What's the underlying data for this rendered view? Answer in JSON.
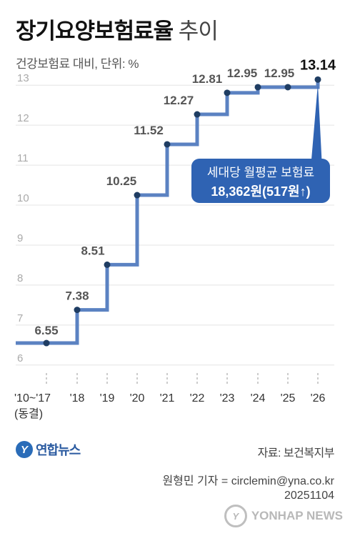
{
  "header": {
    "title_bold": "장기요양보험료율",
    "title_light": "추이",
    "subtitle": "건강보험료 대비, 단위: %"
  },
  "callout": {
    "line1": "세대당 월평균 보험료",
    "line2": "18,362원(517원↑)"
  },
  "footer": {
    "logo_mark": "Y",
    "logo_text": "연합뉴스",
    "source": "자료: 보건복지부",
    "credit": "원형민 기자 = circlemin@yna.co.kr",
    "date": "20251104",
    "watermark": "YONHAP NEWS"
  },
  "chart_data": {
    "type": "line",
    "step": true,
    "categories": [
      "'10~'17\n(동결)",
      "'18",
      "'19",
      "'20",
      "'21",
      "'22",
      "'23",
      "'24",
      "'25",
      "'26"
    ],
    "values": [
      6.55,
      7.38,
      8.51,
      10.25,
      11.52,
      12.27,
      12.81,
      12.95,
      12.95,
      13.14
    ],
    "value_labels": [
      "6.55",
      "7.38",
      "8.51",
      "10.25",
      "11.52",
      "12.27",
      "12.81",
      "12.95",
      "12.95",
      "13.14"
    ],
    "yticks": [
      6,
      7,
      8,
      9,
      10,
      11,
      12,
      13
    ],
    "ylim": [
      5.8,
      13.2
    ],
    "grid": true,
    "colors": {
      "line": "#5b82c2",
      "point": "#1f3d63",
      "callout": "#2f63b3",
      "grid": "#e4e4e4",
      "tick": "#aaaaaa"
    }
  }
}
